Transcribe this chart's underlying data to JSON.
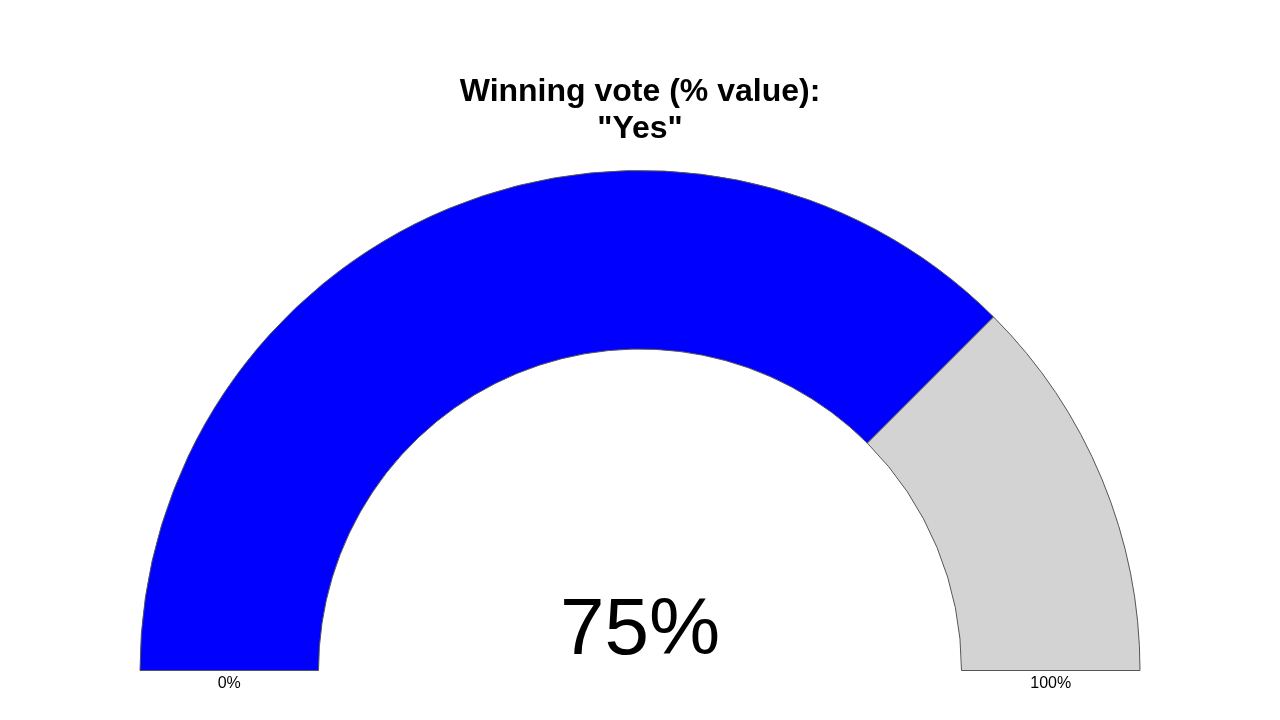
{
  "chart_data": {
    "type": "donut",
    "title": "Winning vote (% value):\n\"Yes\"",
    "categories": [
      null,
      null
    ],
    "values": [
      75,
      25
    ],
    "colors": [
      "#0000ff",
      "#d3d3d3"
    ],
    "value_labels": [
      "75%",
      null
    ],
    "annotations": [
      "0%",
      "100%"
    ]
  }
}
